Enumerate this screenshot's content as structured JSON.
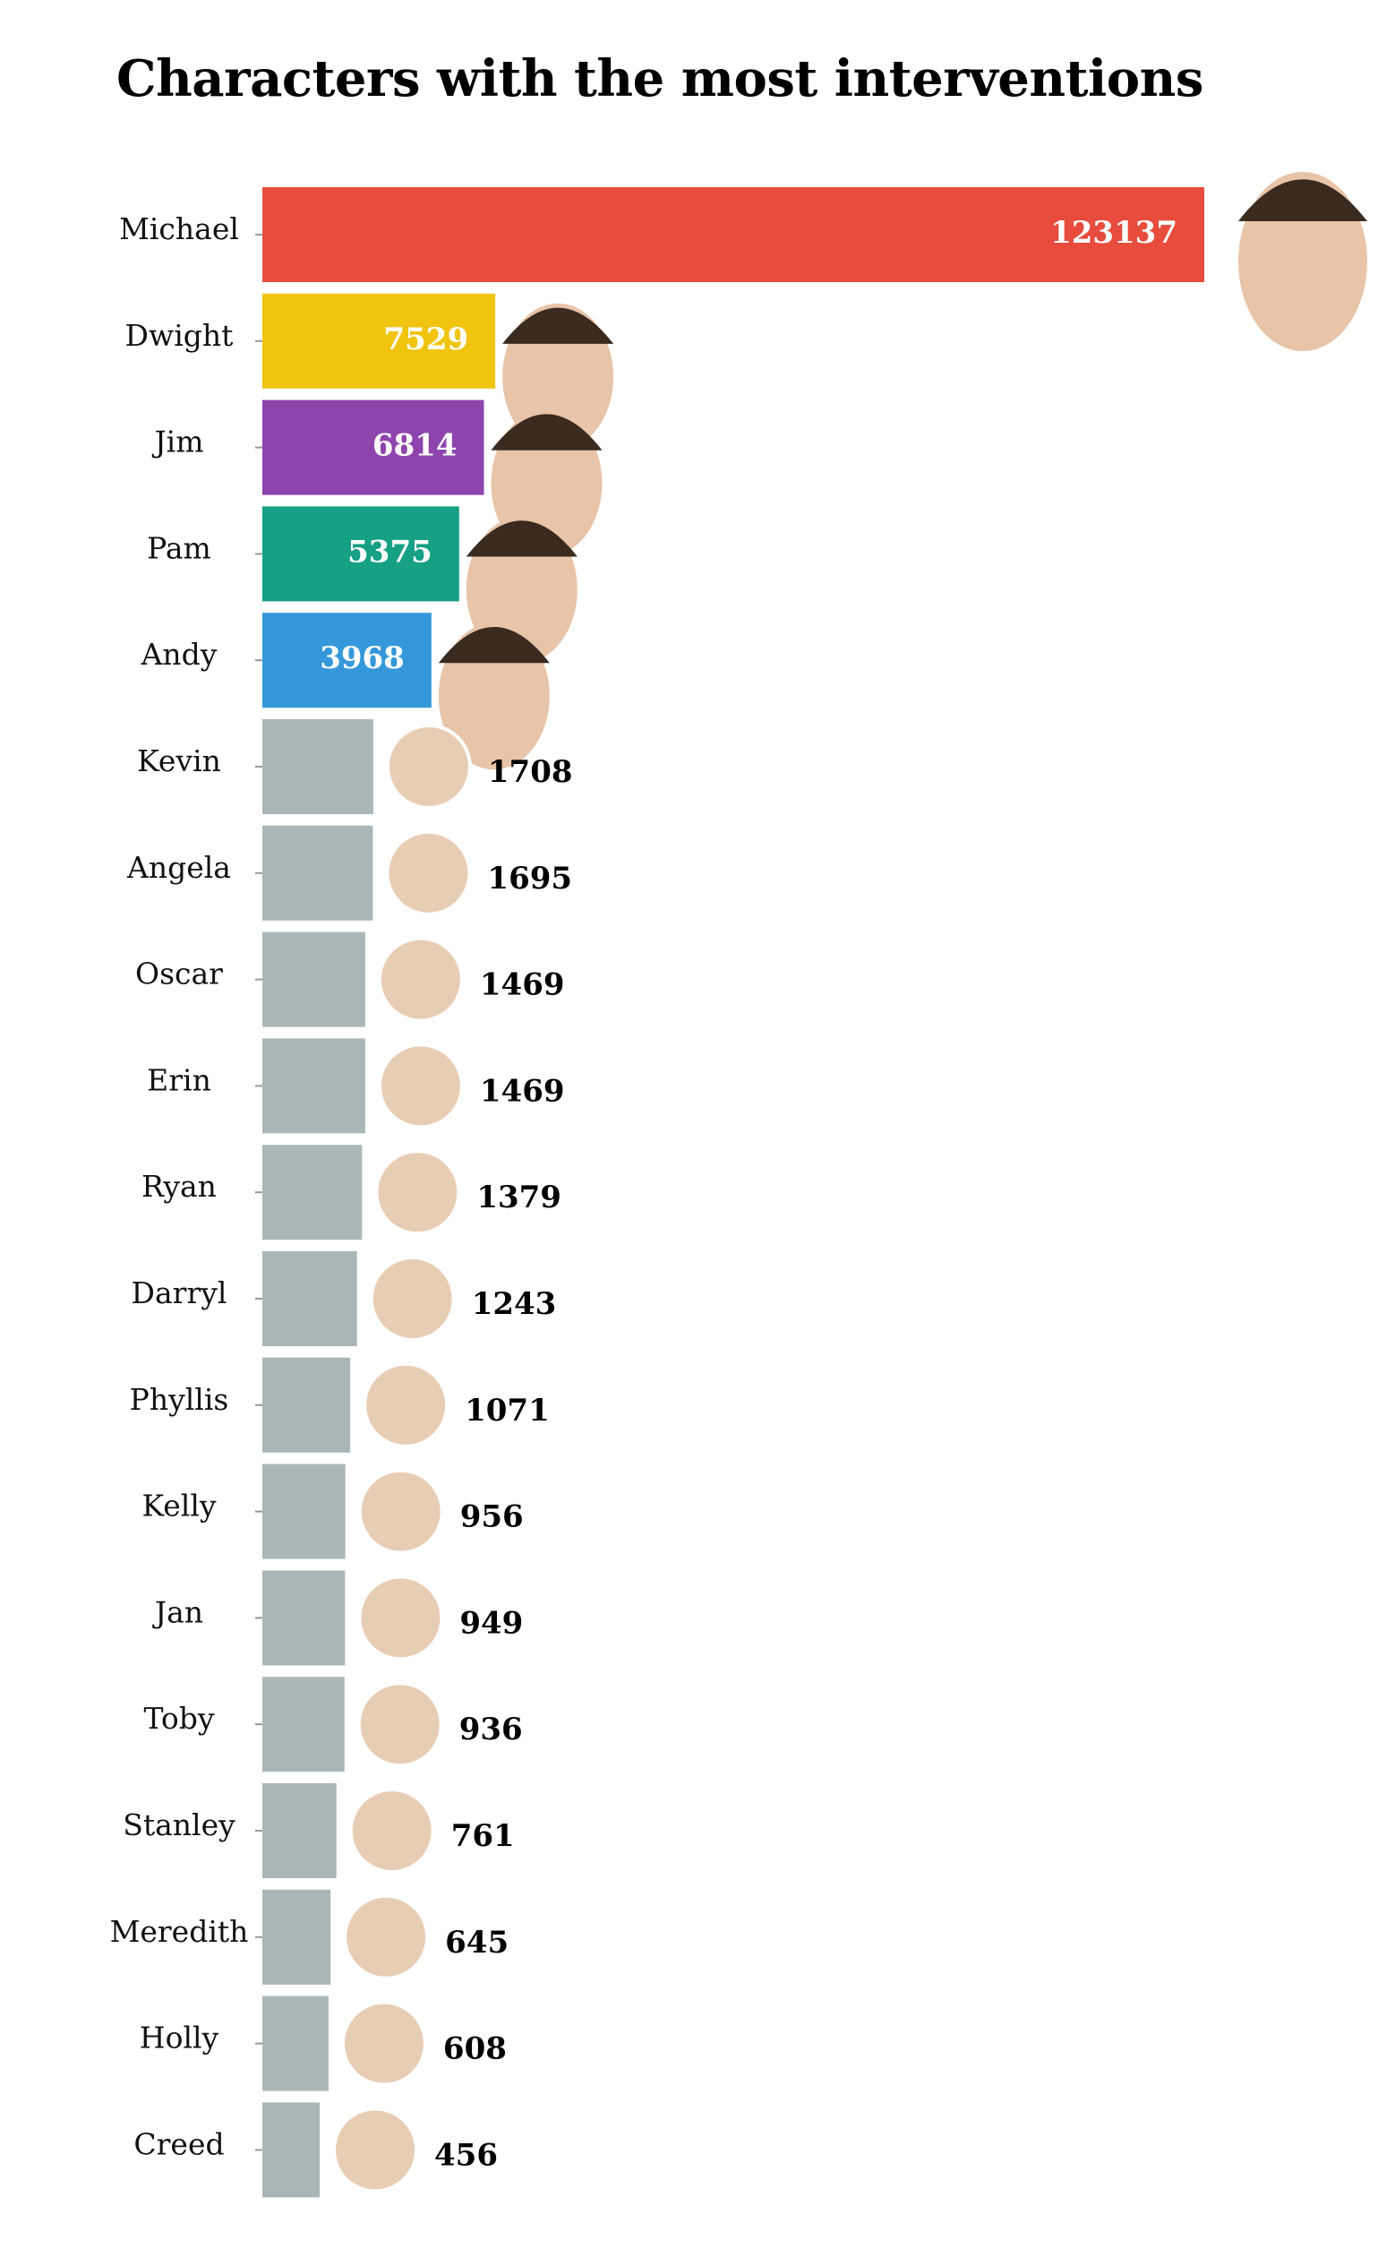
{
  "chart_data": {
    "type": "bar",
    "orientation": "horizontal",
    "title": "Characters with the most interventions",
    "xlabel": "",
    "ylabel": "",
    "grid": false,
    "legend": "none",
    "categories": [
      "Michael",
      "Dwight",
      "Jim",
      "Pam",
      "Andy",
      "Kevin",
      "Angela",
      "Oscar",
      "Erin",
      "Ryan",
      "Darryl",
      "Phyllis",
      "Kelly",
      "Jan",
      "Toby",
      "Stanley",
      "Meredith",
      "Holly",
      "Creed"
    ],
    "values": [
      123137,
      7529,
      6814,
      5375,
      3968,
      1708,
      1695,
      1469,
      1469,
      1379,
      1243,
      1071,
      956,
      949,
      936,
      761,
      645,
      608,
      456
    ],
    "value_labels": [
      "123137",
      "7529",
      "6814",
      "5375",
      "3968",
      "1708",
      "1695",
      "1469",
      "1469",
      "1379",
      "1243",
      "1071",
      "956",
      "949",
      "936",
      "761",
      "645",
      "608",
      "456"
    ],
    "colors": [
      "#e74c3c",
      "#f1c40f",
      "#8e44ad",
      "#16a085",
      "#3498db",
      "#aab7b8",
      "#aab7b8",
      "#aab7b8",
      "#aab7b8",
      "#aab7b8",
      "#aab7b8",
      "#aab7b8",
      "#aab7b8",
      "#aab7b8",
      "#aab7b8",
      "#aab7b8",
      "#aab7b8",
      "#aab7b8",
      "#aab7b8"
    ],
    "label_inside_bar": [
      true,
      true,
      true,
      true,
      true,
      false,
      false,
      false,
      false,
      false,
      false,
      false,
      false,
      false,
      false,
      false,
      false,
      false,
      false
    ]
  }
}
